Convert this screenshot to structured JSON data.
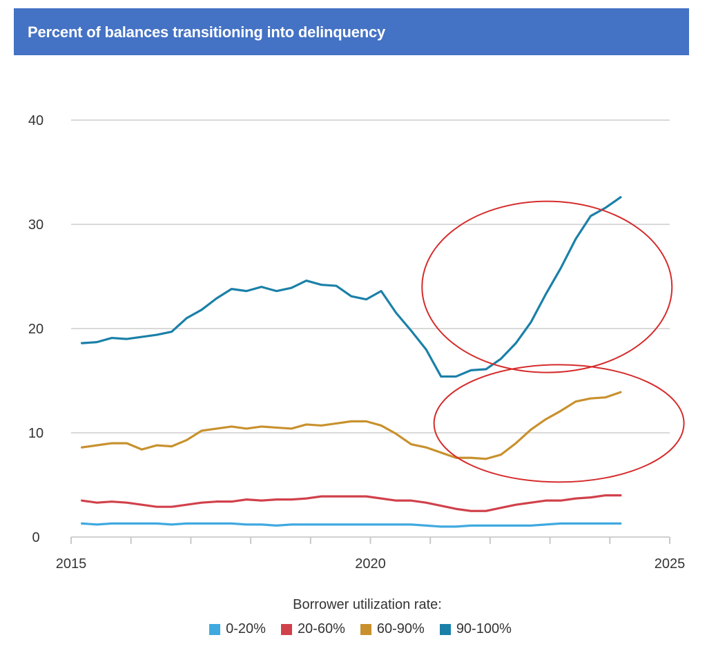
{
  "header": {
    "title": "Percent of balances transitioning into delinquency"
  },
  "chart_data": {
    "type": "line",
    "title": "Percent of balances transitioning into delinquency",
    "xlabel": "",
    "ylabel": "",
    "xlim": [
      2015,
      2025
    ],
    "ylim": [
      0,
      40
    ],
    "yticks": [
      0,
      10,
      20,
      30,
      40
    ],
    "xticks": [
      2015,
      2016,
      2017,
      2018,
      2019,
      2020,
      2021,
      2022,
      2023,
      2024,
      2025
    ],
    "xtick_labels": {
      "2015": "2015",
      "2020": "2020",
      "2025": "2025"
    },
    "grid": true,
    "legend_title": "Borrower utilization rate:",
    "legend_position": "bottom",
    "x": [
      2015.0,
      2015.25,
      2015.5,
      2015.75,
      2016.0,
      2016.25,
      2016.5,
      2016.75,
      2017.0,
      2017.25,
      2017.5,
      2017.75,
      2018.0,
      2018.25,
      2018.5,
      2018.75,
      2019.0,
      2019.25,
      2019.5,
      2019.75,
      2020.0,
      2020.25,
      2020.5,
      2020.75,
      2021.0,
      2021.25,
      2021.5,
      2021.75,
      2022.0,
      2022.25,
      2022.5,
      2022.75,
      2023.0,
      2023.25,
      2023.5,
      2023.75,
      2024.0
    ],
    "series": [
      {
        "name": "0-20%",
        "color": "#3fa9e0",
        "values": [
          1.3,
          1.2,
          1.3,
          1.3,
          1.3,
          1.3,
          1.2,
          1.3,
          1.3,
          1.3,
          1.3,
          1.2,
          1.2,
          1.1,
          1.2,
          1.2,
          1.2,
          1.2,
          1.2,
          1.2,
          1.2,
          1.2,
          1.2,
          1.1,
          1.0,
          1.0,
          1.1,
          1.1,
          1.1,
          1.1,
          1.1,
          1.2,
          1.3,
          1.3,
          1.3,
          1.3,
          1.3
        ]
      },
      {
        "name": "20-60%",
        "color": "#d1414b",
        "values": [
          3.5,
          3.3,
          3.4,
          3.3,
          3.1,
          2.9,
          2.9,
          3.1,
          3.3,
          3.4,
          3.4,
          3.6,
          3.5,
          3.6,
          3.6,
          3.7,
          3.9,
          3.9,
          3.9,
          3.9,
          3.7,
          3.5,
          3.5,
          3.3,
          3.0,
          2.7,
          2.5,
          2.5,
          2.8,
          3.1,
          3.3,
          3.5,
          3.5,
          3.7,
          3.8,
          4.0,
          4.0
        ]
      },
      {
        "name": "60-90%",
        "color": "#c8912e",
        "values": [
          8.6,
          8.8,
          9.0,
          9.0,
          8.4,
          8.8,
          8.7,
          9.3,
          10.2,
          10.4,
          10.6,
          10.4,
          10.6,
          10.5,
          10.4,
          10.8,
          10.7,
          10.9,
          11.1,
          11.1,
          10.7,
          9.9,
          8.9,
          8.6,
          8.1,
          7.6,
          7.6,
          7.5,
          7.9,
          9.0,
          10.3,
          11.3,
          12.1,
          13.0,
          13.3,
          13.4,
          13.9
        ]
      },
      {
        "name": "90-100%",
        "color": "#1a80a8",
        "values": [
          18.6,
          18.7,
          19.1,
          19.0,
          19.2,
          19.4,
          19.7,
          21.0,
          21.8,
          22.9,
          23.8,
          23.6,
          24.0,
          23.6,
          23.9,
          24.6,
          24.2,
          24.1,
          23.1,
          22.8,
          23.6,
          21.5,
          19.8,
          18.0,
          15.4,
          15.4,
          16.0,
          16.1,
          17.1,
          18.6,
          20.6,
          23.3,
          25.8,
          28.6,
          30.8,
          31.6,
          32.6
        ]
      }
    ],
    "annotations": [
      {
        "type": "ellipse",
        "color": "#d62b2b",
        "around": "90-100% rise 2021-2024"
      },
      {
        "type": "ellipse",
        "color": "#d62b2b",
        "around": "60-90% rise 2021-2024"
      }
    ]
  },
  "legend": {
    "title": "Borrower utilization rate:",
    "items": [
      {
        "label": "0-20%",
        "color": "#3fa9e0"
      },
      {
        "label": "20-60%",
        "color": "#d1414b"
      },
      {
        "label": "60-90%",
        "color": "#c8912e"
      },
      {
        "label": "90-100%",
        "color": "#1a80a8"
      }
    ]
  }
}
